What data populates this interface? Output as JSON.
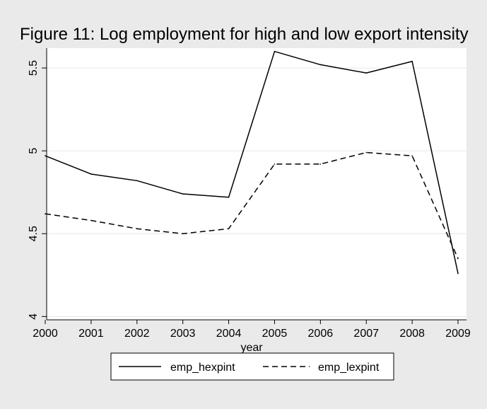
{
  "chart_data": {
    "type": "line",
    "title": "Figure 11: Log employment for high and low export intensity",
    "xlabel": "year",
    "ylabel": "",
    "x": [
      2000,
      2001,
      2002,
      2003,
      2004,
      2005,
      2006,
      2007,
      2008,
      2009
    ],
    "xticks": [
      "2000",
      "2001",
      "2002",
      "2003",
      "2004",
      "2005",
      "2006",
      "2007",
      "2008",
      "2009"
    ],
    "yticks": [
      "4",
      "4.5",
      "5",
      "5.5"
    ],
    "ylim": [
      3.98,
      5.62
    ],
    "xlim": [
      2000,
      2009
    ],
    "grid": true,
    "legend_position": "bottom",
    "series": [
      {
        "name": "emp_hexpint",
        "line_style": "solid",
        "color": "#000000",
        "values": [
          4.97,
          4.86,
          4.82,
          4.74,
          4.72,
          5.6,
          5.52,
          5.47,
          5.54,
          4.26
        ]
      },
      {
        "name": "emp_lexpint",
        "line_style": "dashed",
        "color": "#000000",
        "values": [
          4.62,
          4.58,
          4.53,
          4.5,
          4.53,
          4.92,
          4.92,
          4.99,
          4.97,
          4.35
        ]
      }
    ]
  },
  "colors": {
    "outer_background": "#eaeaea",
    "plot_background": "#ffffff",
    "gridline": "#e6e6e6"
  }
}
